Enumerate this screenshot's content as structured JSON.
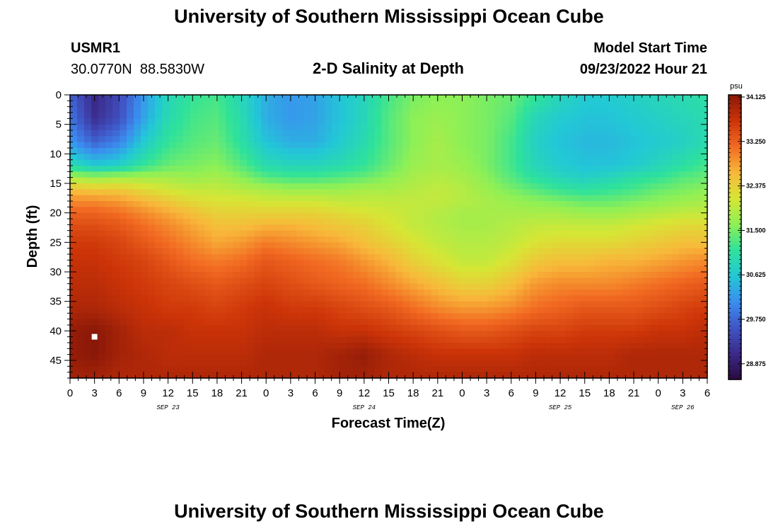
{
  "page": {
    "title": "University of Southern Mississippi Ocean Cube",
    "footer_title": "University of Southern Mississippi Ocean Cube",
    "station_id": "USMR1",
    "station_coords": "30.0770N  88.5830W",
    "plot_title": "2-D Salinity at Depth",
    "model_start_label": "Model Start Time",
    "model_start_value": "09/23/2022 Hour 21"
  },
  "chart_data": {
    "type": "heatmap",
    "title": "2-D Salinity at Depth",
    "xlabel": "Forecast Time(Z)",
    "ylabel": "Depth (ft)",
    "x_hour_ticks": [
      "0",
      "3",
      "6",
      "9",
      "12",
      "15",
      "18",
      "21",
      "0",
      "3",
      "6",
      "9",
      "12",
      "15",
      "18",
      "21",
      "0",
      "3",
      "6",
      "9",
      "12",
      "15",
      "18",
      "21",
      "0",
      "3",
      "6"
    ],
    "x_date_labels": [
      {
        "text": "SEP 23",
        "tick_index": 4
      },
      {
        "text": "SEP 24",
        "tick_index": 12
      },
      {
        "text": "SEP 25",
        "tick_index": 20
      },
      {
        "text": "SEP 26",
        "tick_index": 25
      }
    ],
    "xlim_hours": [
      0,
      78
    ],
    "y_ticks": [
      0,
      5,
      10,
      15,
      20,
      25,
      30,
      35,
      40,
      45
    ],
    "ylim_ft": [
      0,
      48
    ],
    "colorbar": {
      "unit": "psu",
      "ticks": [
        "34.125",
        "33.250",
        "32.375",
        "31.500",
        "30.625",
        "29.750",
        "28.875"
      ],
      "range": [
        28.4,
        34.3
      ]
    },
    "colors": [
      "#2a0a40",
      "#3b2a8a",
      "#4055c6",
      "#3b8ef0",
      "#22c8d6",
      "#2fe29a",
      "#8ff055",
      "#d6e635",
      "#f8b83a",
      "#f26a22",
      "#cc3408",
      "#8a1808"
    ],
    "marker": {
      "hour": 3,
      "depth_ft": 41
    },
    "salinity_grid": {
      "depths_ft": [
        0,
        4,
        8,
        12,
        14,
        16,
        18,
        20,
        22,
        25,
        28,
        32,
        36,
        40,
        44,
        48
      ],
      "hours": [
        0,
        3,
        6,
        9,
        12,
        15,
        18,
        21,
        24,
        27,
        30,
        33,
        36,
        39,
        42,
        45,
        48,
        51,
        54,
        57,
        60,
        63,
        66,
        69,
        72,
        75,
        78
      ],
      "values": [
        [
          29.6,
          28.9,
          29.3,
          30.1,
          30.8,
          31.1,
          31.2,
          30.8,
          30.3,
          30.1,
          30.2,
          30.5,
          30.8,
          31.2,
          31.5,
          31.6,
          31.6,
          31.5,
          31.4,
          31.1,
          30.8,
          30.6,
          30.6,
          30.7,
          30.8,
          30.9,
          31.0
        ],
        [
          29.8,
          29.0,
          29.4,
          30.2,
          30.9,
          31.2,
          31.3,
          30.9,
          30.3,
          30.1,
          30.2,
          30.5,
          30.8,
          31.3,
          31.6,
          31.7,
          31.6,
          31.5,
          31.3,
          30.8,
          30.6,
          30.5,
          30.5,
          30.6,
          30.7,
          30.8,
          30.9
        ],
        [
          30.1,
          29.6,
          29.9,
          30.6,
          31.1,
          31.3,
          31.4,
          31.0,
          30.5,
          30.3,
          30.3,
          30.6,
          30.9,
          31.3,
          31.6,
          31.8,
          31.6,
          31.5,
          31.2,
          30.7,
          30.5,
          30.4,
          30.4,
          30.5,
          30.6,
          30.7,
          30.9
        ],
        [
          30.9,
          30.6,
          30.7,
          31.1,
          31.4,
          31.5,
          31.6,
          31.3,
          30.9,
          30.8,
          30.8,
          30.9,
          31.1,
          31.4,
          31.7,
          31.8,
          31.7,
          31.5,
          31.2,
          30.8,
          30.6,
          30.5,
          30.5,
          30.6,
          30.8,
          31.0,
          31.2
        ],
        [
          31.8,
          31.7,
          31.8,
          31.8,
          31.8,
          31.7,
          31.8,
          31.6,
          31.3,
          31.2,
          31.2,
          31.3,
          31.4,
          31.6,
          31.8,
          31.9,
          31.8,
          31.6,
          31.3,
          31.0,
          30.8,
          30.7,
          30.8,
          31.0,
          31.1,
          31.3,
          31.4
        ],
        [
          32.6,
          32.5,
          32.5,
          32.3,
          32.1,
          32.0,
          32.0,
          31.9,
          31.8,
          31.7,
          31.7,
          31.7,
          31.8,
          31.8,
          31.9,
          32.0,
          31.9,
          31.7,
          31.5,
          31.3,
          31.1,
          31.0,
          31.1,
          31.2,
          31.4,
          31.5,
          31.6
        ],
        [
          33.0,
          33.0,
          32.9,
          32.7,
          32.5,
          32.3,
          32.2,
          32.2,
          32.1,
          32.1,
          32.1,
          32.0,
          32.0,
          32.0,
          32.0,
          32.0,
          31.9,
          31.8,
          31.7,
          31.6,
          31.5,
          31.4,
          31.4,
          31.5,
          31.6,
          31.7,
          31.8
        ],
        [
          33.3,
          33.3,
          33.2,
          33.0,
          32.8,
          32.6,
          32.4,
          32.4,
          32.4,
          32.4,
          32.4,
          32.3,
          32.2,
          32.1,
          32.0,
          31.9,
          31.8,
          31.8,
          31.8,
          31.8,
          31.8,
          31.7,
          31.7,
          31.8,
          31.9,
          32.0,
          32.0
        ],
        [
          33.5,
          33.5,
          33.4,
          33.2,
          33.0,
          32.8,
          32.6,
          32.6,
          32.7,
          32.7,
          32.6,
          32.5,
          32.4,
          32.2,
          32.0,
          31.9,
          31.8,
          31.8,
          31.9,
          32.0,
          32.0,
          32.0,
          32.0,
          32.1,
          32.2,
          32.3,
          32.3
        ],
        [
          33.7,
          33.7,
          33.6,
          33.4,
          33.2,
          33.0,
          32.8,
          32.9,
          33.1,
          33.0,
          32.9,
          32.8,
          32.6,
          32.4,
          32.2,
          32.0,
          31.9,
          31.9,
          32.0,
          32.2,
          32.3,
          32.3,
          32.3,
          32.4,
          32.5,
          32.6,
          32.6
        ],
        [
          33.8,
          33.8,
          33.7,
          33.6,
          33.4,
          33.2,
          33.1,
          33.2,
          33.4,
          33.3,
          33.2,
          33.1,
          32.9,
          32.7,
          32.4,
          32.2,
          32.0,
          32.0,
          32.2,
          32.5,
          32.6,
          32.6,
          32.7,
          32.7,
          32.8,
          32.9,
          33.0
        ],
        [
          33.9,
          33.9,
          33.8,
          33.7,
          33.6,
          33.5,
          33.4,
          33.5,
          33.6,
          33.5,
          33.4,
          33.3,
          33.2,
          33.0,
          32.8,
          32.6,
          32.4,
          32.4,
          32.6,
          32.9,
          33.0,
          33.0,
          33.0,
          33.1,
          33.2,
          33.3,
          33.4
        ],
        [
          34.0,
          34.0,
          33.9,
          33.8,
          33.7,
          33.7,
          33.6,
          33.7,
          33.8,
          33.7,
          33.7,
          33.6,
          33.5,
          33.4,
          33.2,
          33.0,
          32.9,
          32.9,
          33.0,
          33.2,
          33.3,
          33.4,
          33.4,
          33.4,
          33.5,
          33.6,
          33.7
        ],
        [
          34.2,
          34.3,
          34.1,
          33.9,
          33.9,
          33.8,
          33.8,
          33.8,
          33.9,
          33.9,
          33.9,
          33.8,
          33.8,
          33.7,
          33.6,
          33.5,
          33.4,
          33.4,
          33.5,
          33.6,
          33.6,
          33.7,
          33.7,
          33.7,
          33.8,
          33.8,
          33.9
        ],
        [
          34.2,
          34.3,
          34.1,
          34.0,
          33.9,
          33.9,
          33.9,
          33.9,
          34.0,
          34.0,
          34.0,
          34.1,
          34.2,
          34.0,
          33.9,
          33.8,
          33.8,
          33.8,
          33.8,
          33.9,
          33.9,
          33.9,
          33.9,
          34.0,
          34.0,
          34.0,
          34.0
        ],
        [
          34.1,
          34.1,
          34.0,
          34.0,
          34.0,
          34.0,
          34.0,
          34.0,
          34.0,
          34.0,
          34.0,
          34.1,
          34.1,
          34.0,
          34.0,
          34.0,
          34.0,
          34.0,
          34.0,
          34.0,
          34.0,
          34.0,
          34.0,
          34.0,
          34.0,
          34.0,
          34.0
        ]
      ]
    }
  }
}
